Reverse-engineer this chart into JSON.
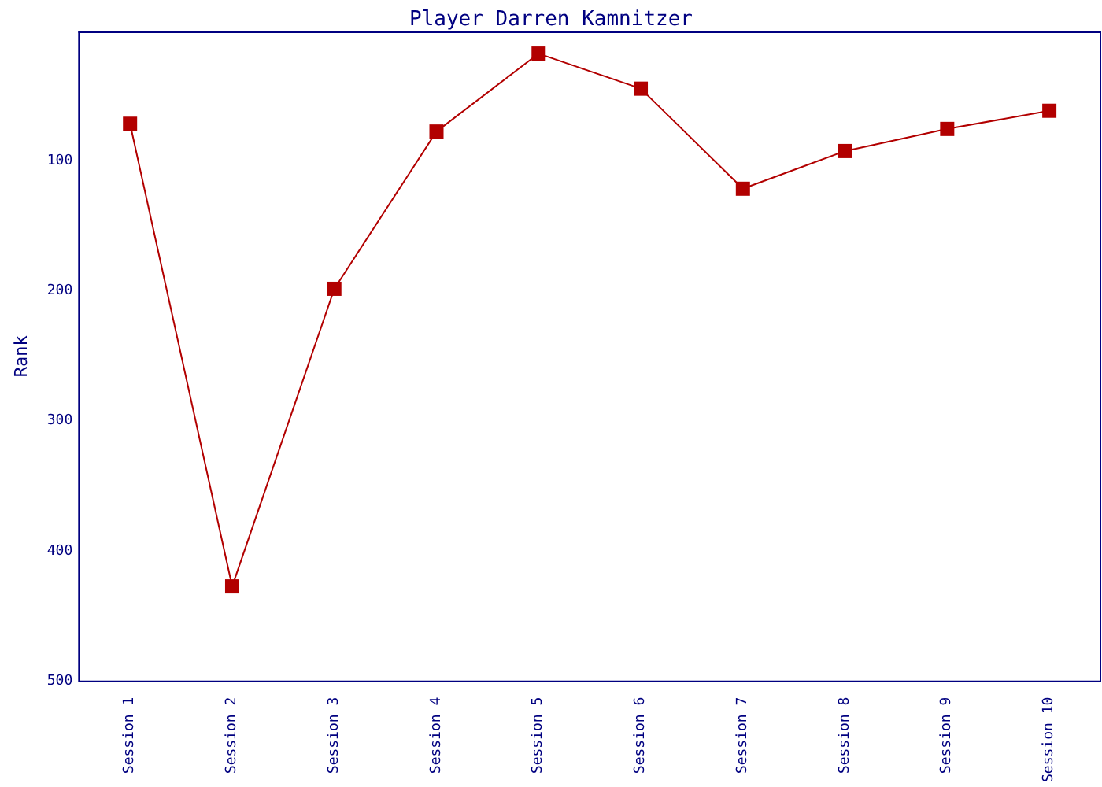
{
  "chart_data": {
    "type": "line",
    "title": "Player Darren Kamnitzer",
    "ylabel": "Rank",
    "categories": [
      "Session 1",
      "Session 2",
      "Session 3",
      "Session 4",
      "Session 5",
      "Session 6",
      "Session 7",
      "Session 8",
      "Session 9",
      "Session 10"
    ],
    "series": [
      {
        "color": "#b20000",
        "values": [
          71,
          427,
          198,
          77,
          17,
          44,
          121,
          92,
          75,
          61
        ]
      }
    ],
    "ylim": [
      500,
      0
    ],
    "yticks": [
      100,
      200,
      300,
      400,
      500
    ],
    "grid": false,
    "marker": "square",
    "line_style": "solid"
  }
}
